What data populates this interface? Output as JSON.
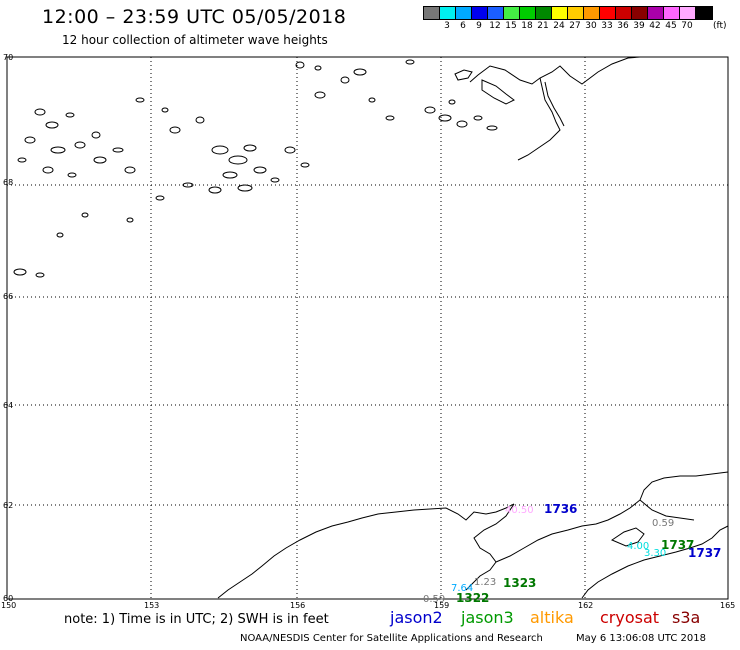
{
  "header": {
    "title": "12:00 – 23:59 UTC 05/05/2018",
    "subtitle": "12 hour collection of altimeter wave heights"
  },
  "legend": {
    "unit": "(ft)",
    "swatches": [
      {
        "color": "#777777",
        "label": ""
      },
      {
        "color": "#00f0f0",
        "label": "3"
      },
      {
        "color": "#00aaff",
        "label": "6"
      },
      {
        "color": "#0000ee",
        "label": "9"
      },
      {
        "color": "#1b5eff",
        "label": "12"
      },
      {
        "color": "#44ee44",
        "label": "15"
      },
      {
        "color": "#00cc00",
        "label": "18"
      },
      {
        "color": "#008800",
        "label": "21"
      },
      {
        "color": "#ffff00",
        "label": "24"
      },
      {
        "color": "#ffcc00",
        "label": "27"
      },
      {
        "color": "#ff9900",
        "label": "30"
      },
      {
        "color": "#ff0000",
        "label": "33"
      },
      {
        "color": "#cc0000",
        "label": "36"
      },
      {
        "color": "#880000",
        "label": "39"
      },
      {
        "color": "#aa00aa",
        "label": "42"
      },
      {
        "color": "#ff66ff",
        "label": "45"
      },
      {
        "color": "#ffaaff",
        "label": "70"
      },
      {
        "color": "#000000",
        "label": ""
      }
    ]
  },
  "map": {
    "lat_labels": [
      "70",
      "68",
      "66",
      "64",
      "62",
      "60"
    ],
    "lon_labels": [
      "150",
      "153",
      "156",
      "159",
      "162",
      "165"
    ],
    "observations": [
      {
        "text": "40.50",
        "color": "#ffaaff"
      },
      {
        "text": "1736",
        "color": "#0000cc"
      },
      {
        "text": "0.59",
        "color": "#777777"
      },
      {
        "text": "4.00",
        "color": "#00dddd"
      },
      {
        "text": "3.30",
        "color": "#00dddd"
      },
      {
        "text": "1737",
        "color": "#007700"
      },
      {
        "text": "1737",
        "color": "#0000cc"
      },
      {
        "text": "7.64",
        "color": "#00aaff"
      },
      {
        "text": "1.23",
        "color": "#777777"
      },
      {
        "text": "1323",
        "color": "#007700"
      },
      {
        "text": "0.59",
        "color": "#777777"
      },
      {
        "text": "1322",
        "color": "#007700"
      }
    ]
  },
  "footer": {
    "note": "note:  1) Time is in UTC;  2) SWH is in feet",
    "satellites": [
      {
        "name": "jason2",
        "color": "#0000cc"
      },
      {
        "name": "jason3",
        "color": "#009900"
      },
      {
        "name": "altika",
        "color": "#ff9900"
      },
      {
        "name": "cryosat",
        "color": "#cc0000"
      },
      {
        "name": "s3a",
        "color": "#880000"
      }
    ],
    "credit": "NOAA/NESDIS Center for Satellite Applications and Research",
    "timestamp": "May  6 13:06:08 UTC 2018"
  }
}
